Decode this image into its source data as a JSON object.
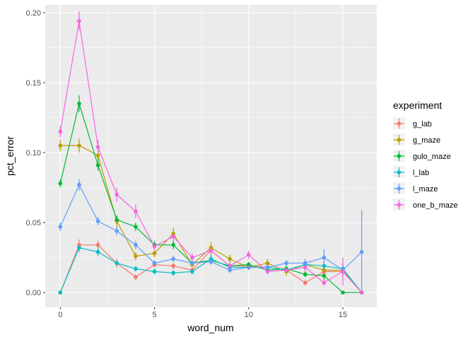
{
  "chart_data": {
    "type": "line",
    "xlabel": "word_num",
    "ylabel": "pct_error",
    "xlim": [
      -0.8,
      16.8
    ],
    "ylim": [
      -0.0105,
      0.2055
    ],
    "x_ticks": [
      0,
      5,
      10,
      15
    ],
    "x_tick_labels": [
      "0",
      "5",
      "10",
      "15"
    ],
    "y_ticks": [
      0.0,
      0.05,
      0.1,
      0.15,
      0.2
    ],
    "y_tick_labels": [
      "0.00",
      "0.05",
      "0.10",
      "0.15",
      "0.20"
    ],
    "grid": true,
    "legend": {
      "title": "experiment",
      "position": "right"
    },
    "x": [
      0,
      1,
      2,
      3,
      4,
      5,
      6,
      7,
      8,
      9,
      10,
      11,
      12,
      13,
      14,
      15,
      16
    ],
    "series": [
      {
        "name": "g_lab",
        "color": "#F8766D",
        "values": [
          0.0,
          0.034,
          0.034,
          0.021,
          0.011,
          0.02,
          0.019,
          0.016,
          0.03,
          0.019,
          0.019,
          0.018,
          0.016,
          0.007,
          0.015,
          0.015,
          0.0
        ],
        "err": [
          0,
          0.004,
          0.003,
          0.003,
          0.002,
          0.002,
          0.002,
          0.002,
          0.003,
          0.002,
          0.002,
          0.002,
          0.002,
          0.002,
          0.003,
          0.004,
          0
        ]
      },
      {
        "name": "g_maze",
        "color": "#B79F00",
        "values": [
          0.105,
          0.105,
          0.098,
          0.051,
          0.026,
          0.028,
          0.042,
          0.02,
          0.032,
          0.024,
          0.018,
          0.021,
          0.015,
          0.02,
          0.016,
          0.016,
          0.0
        ],
        "err": [
          0.004,
          0.005,
          0.004,
          0.004,
          0.003,
          0.003,
          0.004,
          0.002,
          0.004,
          0.003,
          0.002,
          0.003,
          0.003,
          0.003,
          0.004,
          0.005,
          0
        ]
      },
      {
        "name": "gulo_maze",
        "color": "#00BA38",
        "values": [
          0.078,
          0.135,
          0.091,
          0.052,
          0.047,
          0.034,
          0.034,
          0.021,
          0.023,
          0.019,
          0.02,
          0.016,
          0.017,
          0.013,
          0.012,
          0.0,
          0.0
        ],
        "err": [
          0.003,
          0.006,
          0.004,
          0.003,
          0.003,
          0.003,
          0.003,
          0.002,
          0.003,
          0.002,
          0.002,
          0.002,
          0.002,
          0.002,
          0.003,
          0,
          0
        ]
      },
      {
        "name": "l_lab",
        "color": "#00BFC4",
        "values": [
          0.0,
          0.032,
          0.029,
          0.021,
          0.017,
          0.015,
          0.014,
          0.015,
          0.024,
          0.018,
          0.018,
          0.018,
          0.016,
          0.02,
          0.019,
          0.017,
          0.0
        ],
        "err": [
          0,
          0.003,
          0.003,
          0.002,
          0.002,
          0.002,
          0.002,
          0.002,
          0.003,
          0.002,
          0.002,
          0.002,
          0.002,
          0.002,
          0.003,
          0.004,
          0
        ]
      },
      {
        "name": "l_maze",
        "color": "#619CFF",
        "values": [
          0.047,
          0.077,
          0.051,
          0.044,
          0.034,
          0.021,
          0.024,
          0.021,
          0.022,
          0.016,
          0.018,
          0.018,
          0.021,
          0.021,
          0.025,
          0.016,
          0.029
        ],
        "err": [
          0.003,
          0.004,
          0.003,
          0.003,
          0.003,
          0.002,
          0.002,
          0.002,
          0.002,
          0.002,
          0.002,
          0.002,
          0.002,
          0.003,
          0.006,
          0.004,
          0.03
        ]
      },
      {
        "name": "one_b_maze",
        "color": "#F564E3",
        "values": [
          0.115,
          0.194,
          0.104,
          0.07,
          0.058,
          0.033,
          0.04,
          0.025,
          0.03,
          0.019,
          0.027,
          0.015,
          0.016,
          0.018,
          0.007,
          0.015,
          0.0
        ],
        "err": [
          0.004,
          0.007,
          0.005,
          0.005,
          0.005,
          0.003,
          0.003,
          0.003,
          0.003,
          0.002,
          0.003,
          0.002,
          0.002,
          0.003,
          0.002,
          0.01,
          0
        ]
      }
    ]
  }
}
